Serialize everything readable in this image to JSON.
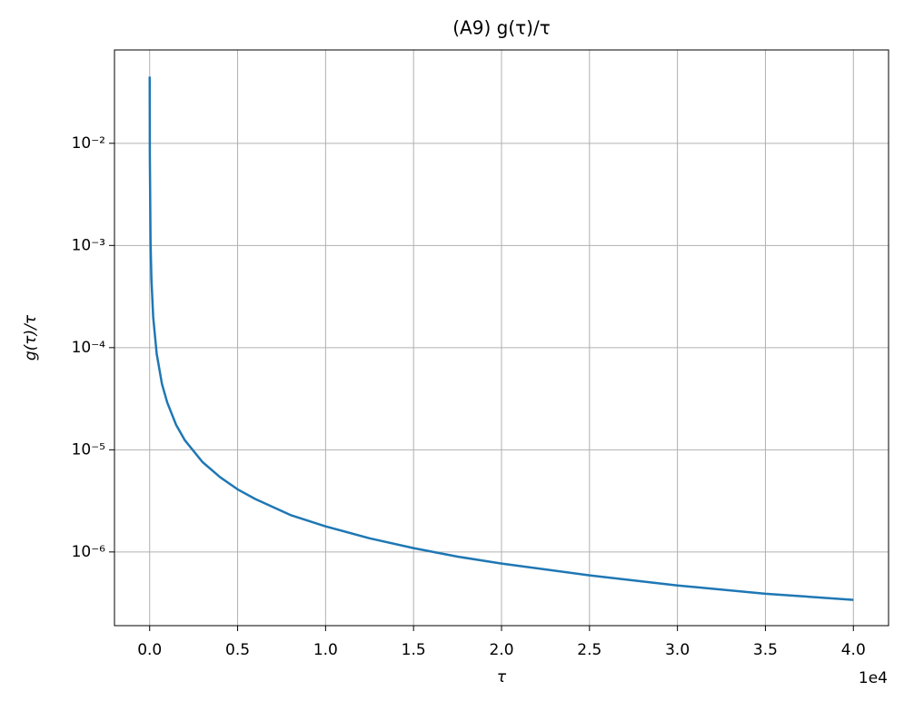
{
  "chart_data": {
    "type": "line",
    "title": "(A9) g(τ)/τ",
    "xlabel": "τ",
    "ylabel": "g(τ)/τ",
    "x": [
      2,
      10,
      50,
      100,
      200,
      400,
      700,
      1000,
      1500,
      2000,
      3000,
      4000,
      5000,
      6000,
      8000,
      10000,
      12500,
      15000,
      17500,
      20000,
      25000,
      30000,
      35000,
      40000
    ],
    "values": [
      0.045,
      0.0076,
      0.00108,
      0.00047,
      0.0002,
      8.7e-05,
      4.4e-05,
      2.9e-05,
      1.76e-05,
      1.24e-05,
      7.6e-06,
      5.4e-06,
      4.1e-06,
      3.3e-06,
      2.3e-06,
      1.78e-06,
      1.36e-06,
      1.09e-06,
      9e-07,
      7.7e-07,
      5.9e-07,
      4.7e-07,
      3.9e-07,
      3.4e-07
    ],
    "color": "#1f77b4",
    "xlim": [
      -2000,
      42000
    ],
    "xticks": [
      {
        "value": 0,
        "label": "0.0"
      },
      {
        "value": 5000,
        "label": "0.5"
      },
      {
        "value": 10000,
        "label": "1.0"
      },
      {
        "value": 15000,
        "label": "1.5"
      },
      {
        "value": 20000,
        "label": "2.0"
      },
      {
        "value": 25000,
        "label": "2.5"
      },
      {
        "value": 30000,
        "label": "3.0"
      },
      {
        "value": 35000,
        "label": "3.5"
      },
      {
        "value": 40000,
        "label": "4.0"
      }
    ],
    "x_offset_label": "1e4",
    "ylim": [
      1.9e-07,
      0.082
    ],
    "yscale": "log",
    "yticks": [
      {
        "value": 0.01,
        "label": "10⁻²"
      },
      {
        "value": 0.001,
        "label": "10⁻³"
      },
      {
        "value": 0.0001,
        "label": "10⁻⁴"
      },
      {
        "value": 1e-05,
        "label": "10⁻⁵"
      },
      {
        "value": 1e-06,
        "label": "10⁻⁶"
      }
    ],
    "grid": true
  }
}
